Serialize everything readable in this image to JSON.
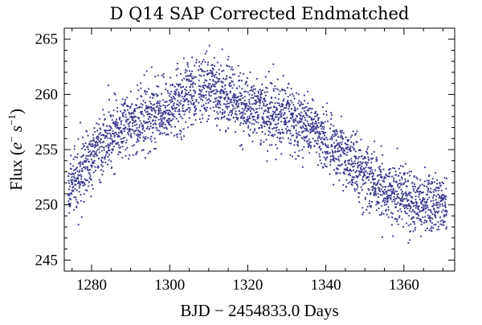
{
  "chart_data": {
    "type": "scatter",
    "title": "D Q14 SAP Corrected Endmatched",
    "xlabel": "BJD − 2454833.0 Days",
    "ylabel": {
      "prefix": "Flux (",
      "e_base": "e",
      "e_sup": "−",
      "s_base": " s",
      "s_sup": "−1",
      "suffix": ")"
    },
    "xlim": [
      1273,
      1373
    ],
    "ylim": [
      244,
      266
    ],
    "x_ticks": [
      1280,
      1300,
      1320,
      1340,
      1360
    ],
    "y_ticks": [
      245,
      250,
      255,
      260,
      265
    ],
    "x_tick_labels": [
      "1280",
      "1300",
      "1320",
      "1340",
      "1360"
    ],
    "y_tick_labels": [
      "245",
      "250",
      "255",
      "260",
      "265"
    ],
    "trend": {
      "x_range": [
        1274,
        1371
      ],
      "x": [
        1274,
        1278,
        1282,
        1286,
        1290,
        1294,
        1298,
        1302,
        1306,
        1310,
        1314,
        1318,
        1322,
        1326,
        1330,
        1334,
        1338,
        1342,
        1346,
        1350,
        1354,
        1358,
        1362,
        1366,
        1371
      ],
      "y": [
        251.5,
        253.5,
        255.0,
        256.5,
        257.5,
        258.0,
        258.3,
        259.3,
        260.3,
        260.6,
        260.0,
        259.2,
        258.6,
        258.4,
        258.0,
        257.5,
        256.5,
        255.3,
        254.0,
        252.8,
        251.7,
        250.9,
        250.3,
        250.0,
        249.9
      ],
      "scatter_sd": 1.4,
      "n_points": 3000
    },
    "series_color": "#3b3b8f"
  }
}
